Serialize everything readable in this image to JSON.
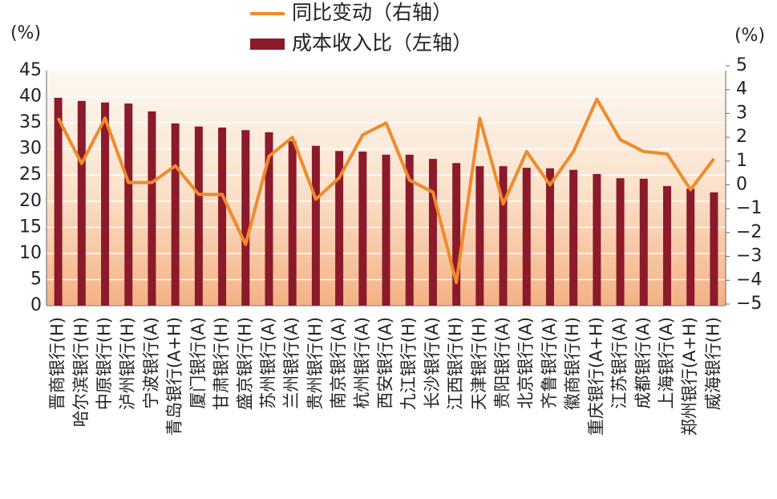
{
  "chart_data": {
    "type": "bar-line",
    "categories": [
      "晋商银行(H)",
      "哈尔滨银行(H)",
      "中原银行(H)",
      "泸州银行(H)",
      "宁波银行(A)",
      "青岛银行(A+H)",
      "厦门银行(A)",
      "甘肃银行(H)",
      "盛京银行(H)",
      "苏州银行(A)",
      "兰州银行(A)",
      "贵州银行(H)",
      "南京银行(A)",
      "杭州银行(A)",
      "西安银行(A)",
      "九江银行(H)",
      "长沙银行(A)",
      "江西银行(H)",
      "天津银行(H)",
      "贵阳银行(A)",
      "北京银行(A)",
      "齐鲁银行(A)",
      "徽商银行(H)",
      "重庆银行(A+H)",
      "江苏银行(A)",
      "成都银行(A)",
      "上海银行(A)",
      "郑州银行(A+H)",
      "威海银行(H)"
    ],
    "series": [
      {
        "name": "成本收入比（左轴）",
        "type": "bar",
        "color": "#8b1a2b",
        "axis": "y",
        "values": [
          39.8,
          39.2,
          38.9,
          38.7,
          37.2,
          34.9,
          34.3,
          34.1,
          33.6,
          33.2,
          31.5,
          30.6,
          29.6,
          29.5,
          28.9,
          28.9,
          28.1,
          27.3,
          26.7,
          26.7,
          26.4,
          26.3,
          26.0,
          25.2,
          24.4,
          24.3,
          22.9,
          22.4,
          21.7
        ]
      },
      {
        "name": "同比变动（右轴）",
        "type": "line",
        "color": "#f08a2c",
        "axis": "y2",
        "values": [
          2.8,
          0.9,
          2.8,
          0.1,
          0.1,
          0.8,
          -0.4,
          -0.4,
          -2.5,
          1.2,
          2.0,
          -0.6,
          0.3,
          2.1,
          2.6,
          0.2,
          -0.3,
          -4.1,
          2.8,
          -0.8,
          1.4,
          0.0,
          1.4,
          3.6,
          1.9,
          1.4,
          1.3,
          -0.2,
          1.1
        ]
      }
    ],
    "ylabel": "(%)",
    "y2label": "(%)",
    "ylim": [
      0,
      45
    ],
    "yticks": [
      0,
      5,
      10,
      15,
      20,
      25,
      30,
      35,
      40,
      45
    ],
    "y2lim": [
      -5,
      5
    ],
    "y2ticks": [
      {
        "value": -5,
        "label": "−5"
      },
      {
        "value": -4,
        "label": "−4"
      },
      {
        "value": -3,
        "label": "−3"
      },
      {
        "value": -2,
        "label": "−2"
      },
      {
        "value": -1,
        "label": "−1"
      },
      0,
      1,
      2,
      3,
      4,
      5
    ],
    "grid": true
  }
}
